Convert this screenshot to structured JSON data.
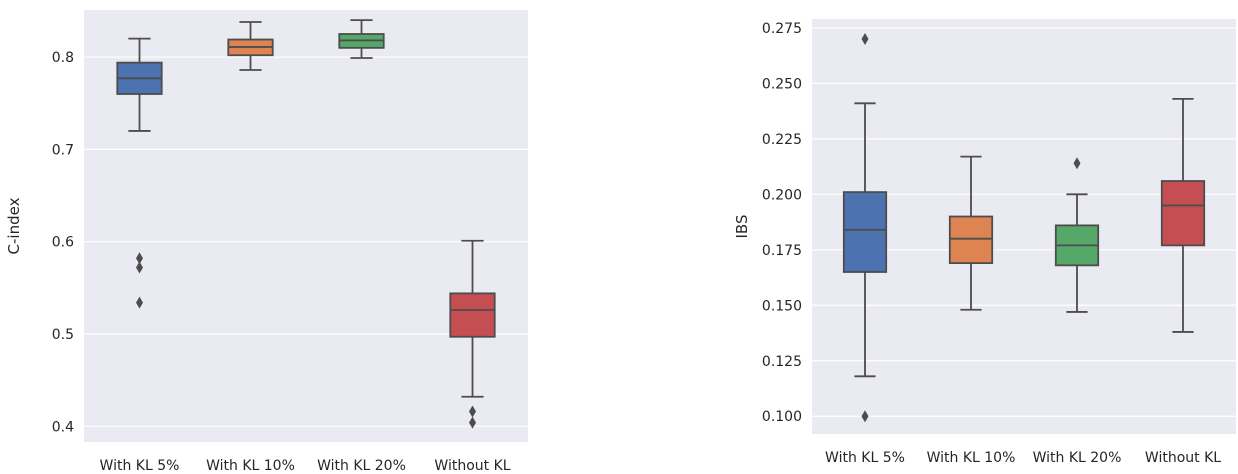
{
  "chart_data": [
    {
      "type": "box",
      "ylabel": "C-index",
      "xlabel": "",
      "ylim": [
        0.383,
        0.851
      ],
      "yticks": [
        "0.4",
        "0.5",
        "0.6",
        "0.7",
        "0.8"
      ],
      "grid": true,
      "categories": [
        "With KL 5%",
        "With KL 10%",
        "With KL 20%",
        "Without KL"
      ],
      "boxes": [
        {
          "name": "With KL 5%",
          "color": "#4c72b0",
          "whisker_low": 0.72,
          "q1": 0.76,
          "median": 0.777,
          "q3": 0.794,
          "whisker_high": 0.82,
          "outliers": [
            0.582,
            0.572,
            0.534
          ]
        },
        {
          "name": "With KL 10%",
          "color": "#dd8452",
          "whisker_low": 0.786,
          "q1": 0.802,
          "median": 0.811,
          "q3": 0.819,
          "whisker_high": 0.838,
          "outliers": []
        },
        {
          "name": "With KL 20%",
          "color": "#55a868",
          "whisker_low": 0.799,
          "q1": 0.81,
          "median": 0.818,
          "q3": 0.825,
          "whisker_high": 0.84,
          "outliers": []
        },
        {
          "name": "Without KL",
          "color": "#c44e52",
          "whisker_low": 0.432,
          "q1": 0.497,
          "median": 0.526,
          "q3": 0.544,
          "whisker_high": 0.601,
          "outliers": [
            0.416,
            0.404
          ]
        }
      ]
    },
    {
      "type": "box",
      "ylabel": "IBS",
      "xlabel": "",
      "ylim": [
        0.092,
        0.279
      ],
      "yticks": [
        "0.100",
        "0.125",
        "0.150",
        "0.175",
        "0.200",
        "0.225",
        "0.250",
        "0.275"
      ],
      "grid": true,
      "categories": [
        "With KL 5%",
        "With KL 10%",
        "With KL 20%",
        "Without KL"
      ],
      "boxes": [
        {
          "name": "With KL 5%",
          "color": "#4c72b0",
          "whisker_low": 0.118,
          "q1": 0.165,
          "median": 0.184,
          "q3": 0.201,
          "whisker_high": 0.241,
          "outliers": [
            0.27,
            0.1
          ]
        },
        {
          "name": "With KL 10%",
          "color": "#dd8452",
          "whisker_low": 0.148,
          "q1": 0.169,
          "median": 0.18,
          "q3": 0.19,
          "whisker_high": 0.217,
          "outliers": []
        },
        {
          "name": "With KL 20%",
          "color": "#55a868",
          "whisker_low": 0.147,
          "q1": 0.168,
          "median": 0.177,
          "q3": 0.186,
          "whisker_high": 0.2,
          "outliers": [
            0.214
          ]
        },
        {
          "name": "Without KL",
          "color": "#c44e52",
          "whisker_low": 0.138,
          "q1": 0.177,
          "median": 0.195,
          "q3": 0.206,
          "whisker_high": 0.243,
          "outliers": []
        }
      ]
    }
  ]
}
